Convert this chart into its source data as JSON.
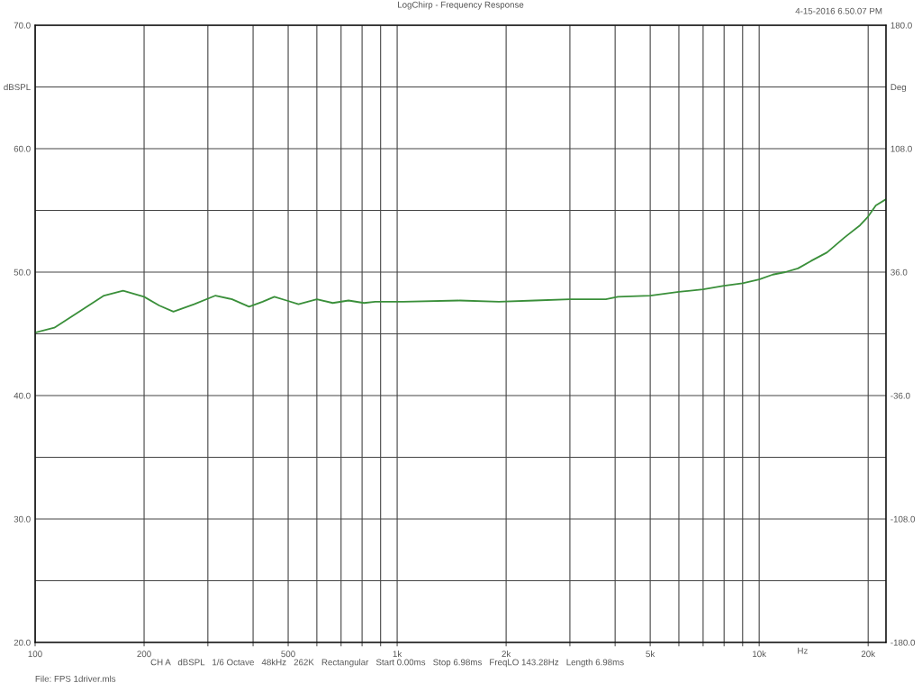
{
  "chart_data": {
    "type": "line",
    "title": "LogChirp - Frequency Response",
    "xlabel": "Hz",
    "annotations": [
      "4-15-2016 6.50.07 PM",
      "CH A   dBSPL   1/6 Octave   48kHz   262K   Rectangular   Start 0.00ms   Stop 6.98ms   FreqLO 143.28Hz   Length 6.98ms",
      "File: FPS 1driver.mls"
    ],
    "log": "x",
    "grid": true,
    "marker": "none",
    "line_style": "solid",
    "xlim": [
      100,
      22400
    ],
    "ylim": [
      20,
      70
    ],
    "y2lim": [
      -180,
      180
    ],
    "xticks": [
      100,
      200,
      {
        "value": 300,
        "label": null
      },
      {
        "value": 400,
        "label": null
      },
      500,
      {
        "value": 600,
        "label": null
      },
      {
        "value": 700,
        "label": null
      },
      {
        "value": 800,
        "label": null
      },
      {
        "value": 900,
        "label": null
      },
      {
        "value": 1000,
        "label": "1k"
      },
      {
        "value": 2000,
        "label": "2k"
      },
      {
        "value": 3000,
        "label": null
      },
      {
        "value": 4000,
        "label": null
      },
      {
        "value": 5000,
        "label": "5k"
      },
      {
        "value": 6000,
        "label": null
      },
      {
        "value": 7000,
        "label": null
      },
      {
        "value": 8000,
        "label": null
      },
      {
        "value": 9000,
        "label": null
      },
      {
        "value": 10000,
        "label": "10k"
      },
      {
        "value": 20000,
        "label": "20k"
      }
    ],
    "yticks": [
      {
        "value": 20,
        "label": "20.0"
      },
      {
        "value": 25,
        "label": null
      },
      {
        "value": 30,
        "label": "30.0"
      },
      {
        "value": 35,
        "label": null
      },
      {
        "value": 40,
        "label": "40.0"
      },
      {
        "value": 45,
        "label": null
      },
      {
        "value": 50,
        "label": "50.0"
      },
      {
        "value": 55,
        "label": null
      },
      {
        "value": 60,
        "label": "60.0"
      },
      {
        "value": 65,
        "label": "dBSPL"
      },
      {
        "value": 70,
        "label": "70.0"
      }
    ],
    "y2ticks": [
      {
        "value": -180,
        "label": "-180.0"
      },
      {
        "value": -108,
        "label": "-108.0"
      },
      {
        "value": -36,
        "label": "-36.0"
      },
      {
        "value": 36,
        "label": "36.0"
      },
      {
        "value": 108,
        "label": "108.0"
      },
      {
        "value": 144,
        "label": "Deg"
      },
      {
        "value": 180,
        "label": "180.0"
      }
    ],
    "series": [
      {
        "color": "#3a8f3a",
        "x": [
          100,
          113,
          134,
          155,
          175,
          200,
          220,
          241,
          275,
          315,
          350,
          390,
          425,
          458,
          495,
          534,
          600,
          664,
          734,
          810,
          870,
          1040,
          1490,
          1910,
          2400,
          3000,
          3770,
          4070,
          5000,
          6000,
          7000,
          8000,
          9000,
          10000,
          10900,
          11800,
          12800,
          13900,
          15400,
          17200,
          19000,
          20000,
          21000,
          22400
        ],
        "values": [
          45.1,
          45.5,
          46.9,
          48.1,
          48.5,
          48.0,
          47.3,
          46.8,
          47.4,
          48.1,
          47.8,
          47.2,
          47.6,
          48.0,
          47.7,
          47.4,
          47.8,
          47.5,
          47.7,
          47.5,
          47.6,
          47.6,
          47.7,
          47.6,
          47.7,
          47.8,
          47.8,
          48.0,
          48.1,
          48.4,
          48.6,
          48.9,
          49.1,
          49.4,
          49.8,
          50.0,
          50.3,
          50.9,
          51.6,
          52.8,
          53.8,
          54.5,
          55.4,
          55.9
        ]
      }
    ]
  }
}
